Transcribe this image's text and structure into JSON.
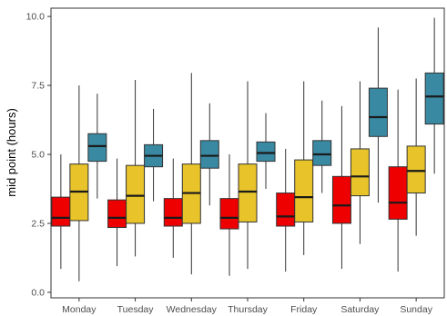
{
  "chart_data": {
    "type": "boxplot",
    "title": "",
    "xlabel": "",
    "ylabel": "mid point (hours)",
    "ylim": [
      -0.2,
      10.3
    ],
    "yticks": [
      "0.0",
      "2.5",
      "5.0",
      "7.5",
      "10.0"
    ],
    "categories": [
      "Monday",
      "Tuesday",
      "Wednesday",
      "Thursday",
      "Friday",
      "Saturday",
      "Sunday"
    ],
    "grid": false,
    "legend": "none",
    "series": [
      {
        "color": "#ee0000",
        "boxes": [
          {
            "min": 0.85,
            "q1": 2.4,
            "median": 2.7,
            "q3": 3.45,
            "max": 5.0
          },
          {
            "min": 0.95,
            "q1": 2.35,
            "median": 2.7,
            "q3": 3.35,
            "max": 4.85
          },
          {
            "min": 1.25,
            "q1": 2.4,
            "median": 2.7,
            "q3": 3.4,
            "max": 4.85
          },
          {
            "min": 0.6,
            "q1": 2.3,
            "median": 2.7,
            "q3": 3.4,
            "max": 5.0
          },
          {
            "min": 0.75,
            "q1": 2.4,
            "median": 2.75,
            "q3": 3.6,
            "max": 5.2
          },
          {
            "min": 0.85,
            "q1": 2.5,
            "median": 3.15,
            "q3": 4.2,
            "max": 6.75
          },
          {
            "min": 0.75,
            "q1": 2.65,
            "median": 3.25,
            "q3": 4.55,
            "max": 7.35
          }
        ]
      },
      {
        "color": "#e8c32a",
        "boxes": [
          {
            "min": 0.4,
            "q1": 2.6,
            "median": 3.65,
            "q3": 4.65,
            "max": 7.5
          },
          {
            "min": 1.3,
            "q1": 2.5,
            "median": 3.5,
            "q3": 4.6,
            "max": 7.7
          },
          {
            "min": 0.65,
            "q1": 2.5,
            "median": 3.6,
            "q3": 4.65,
            "max": 7.95
          },
          {
            "min": 0.85,
            "q1": 2.55,
            "median": 3.65,
            "q3": 4.65,
            "max": 7.65
          },
          {
            "min": 1.35,
            "q1": 2.55,
            "median": 3.45,
            "q3": 4.8,
            "max": 7.65
          },
          {
            "min": 1.75,
            "q1": 3.5,
            "median": 4.2,
            "q3": 5.2,
            "max": 7.65
          },
          {
            "min": 2.05,
            "q1": 3.6,
            "median": 4.4,
            "q3": 5.3,
            "max": 7.75
          }
        ]
      },
      {
        "color": "#3a89a3",
        "boxes": [
          {
            "min": 3.4,
            "q1": 4.75,
            "median": 5.3,
            "q3": 5.75,
            "max": 7.2
          },
          {
            "min": 3.3,
            "q1": 4.55,
            "median": 4.95,
            "q3": 5.35,
            "max": 6.65
          },
          {
            "min": 3.15,
            "q1": 4.5,
            "median": 4.95,
            "q3": 5.5,
            "max": 6.85
          },
          {
            "min": 3.75,
            "q1": 4.75,
            "median": 5.05,
            "q3": 5.45,
            "max": 6.5
          },
          {
            "min": 3.6,
            "q1": 4.6,
            "median": 5.0,
            "q3": 5.5,
            "max": 6.95
          },
          {
            "min": 3.25,
            "q1": 5.65,
            "median": 6.35,
            "q3": 7.4,
            "max": 9.6
          },
          {
            "min": 4.3,
            "q1": 6.1,
            "median": 7.1,
            "q3": 7.95,
            "max": 9.95
          }
        ]
      }
    ]
  }
}
